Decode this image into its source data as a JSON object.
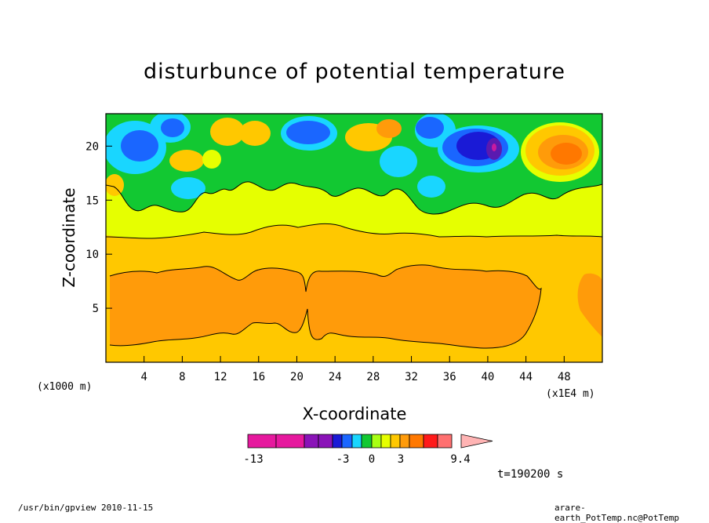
{
  "chart_data": {
    "type": "contour",
    "title": "disturbunce of potential temperature",
    "xlabel": "X-coordinate",
    "ylabel": "Z-coordinate",
    "x_unit": "(x1000 m)",
    "x_multiplier": "(x1E4 m)",
    "xlim": [
      0,
      52
    ],
    "ylim": [
      0,
      23
    ],
    "x_ticks": [
      4,
      8,
      12,
      16,
      20,
      24,
      28,
      32,
      36,
      40,
      44,
      48
    ],
    "y_ticks": [
      5,
      10,
      15,
      20
    ],
    "time_label": "t=190200 s",
    "colorbar": {
      "labels": [
        "-13",
        "-3",
        "0",
        "3",
        "9.4"
      ],
      "colors": [
        "#e6199e",
        "#e6199e",
        "#8a13b8",
        "#8a13b8",
        "#1a1ad6",
        "#1a66ff",
        "#19d6ff",
        "#12c832",
        "#a8ff14",
        "#e6ff00",
        "#ffc800",
        "#ff9b0a",
        "#ff7800",
        "#ff1a1a",
        "#ff7070",
        "#ffb4b4"
      ]
    },
    "levels_colors": {
      "strong_negative": "#1a1ad6",
      "negative": "#1a66ff",
      "weak_negative": "#19d6ff",
      "near_zero": "#12c832",
      "slightly_positive": "#e6ff00",
      "positive": "#ffc800",
      "more_positive": "#ff9b0a",
      "max_positive": "#ff7800",
      "extreme_negative": "#c81aa0"
    }
  },
  "footer": {
    "left": "/usr/bin/gpview  2010-11-15",
    "right": "arare-earth_PotTemp.nc@PotTemp"
  }
}
